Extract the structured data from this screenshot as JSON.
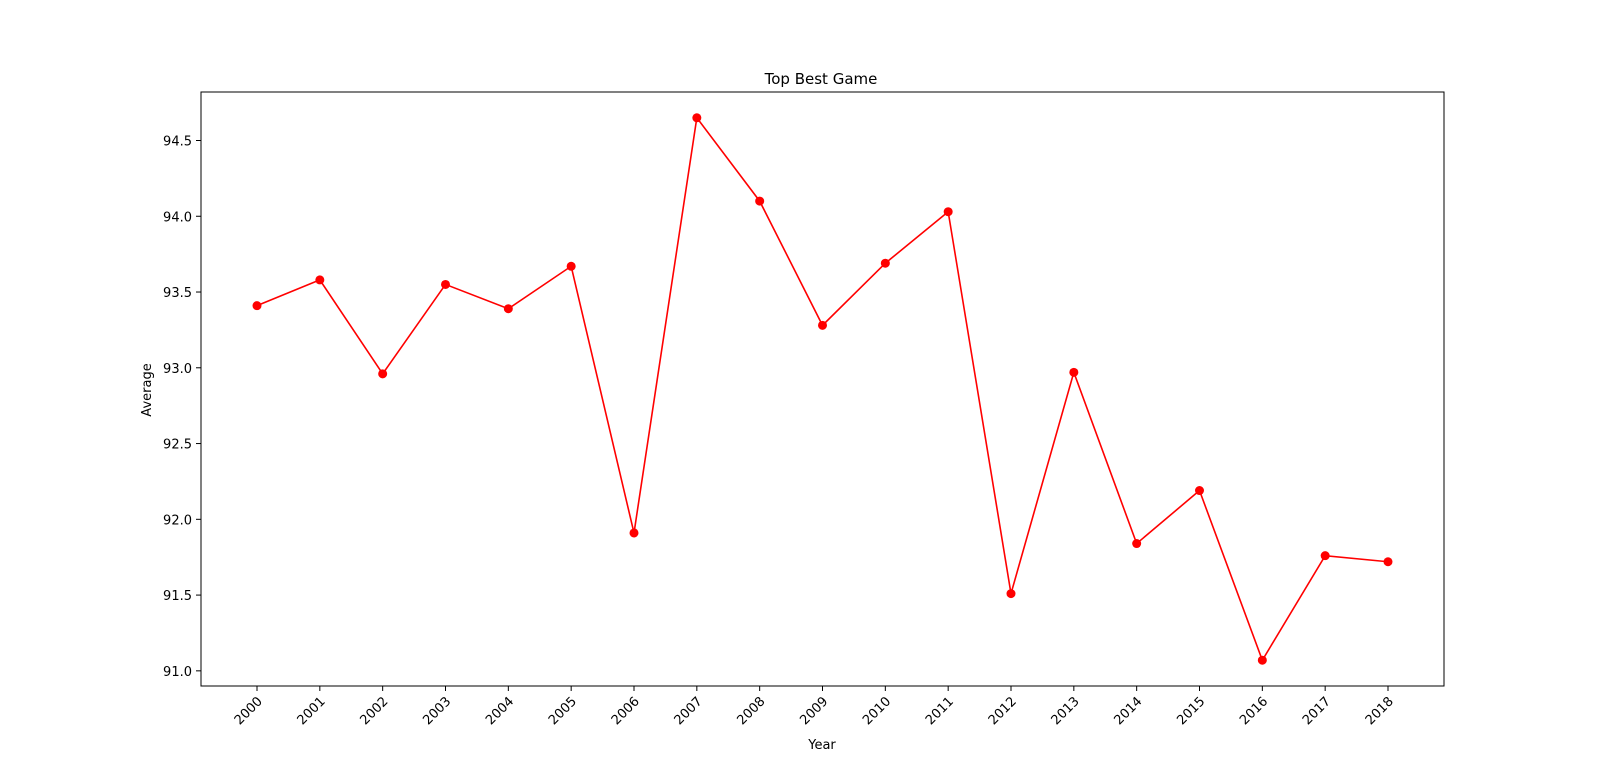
{
  "chart_data": {
    "type": "line",
    "title": "Top Best Game",
    "xlabel": "Year",
    "ylabel": "Average",
    "categories": [
      "2000",
      "2001",
      "2002",
      "2003",
      "2004",
      "2005",
      "2006",
      "2007",
      "2008",
      "2009",
      "2010",
      "2011",
      "2012",
      "2013",
      "2014",
      "2015",
      "2016",
      "2017",
      "2018"
    ],
    "series": [
      {
        "values": [
          93.41,
          93.58,
          92.96,
          93.55,
          93.39,
          93.67,
          91.91,
          94.65,
          94.1,
          93.28,
          93.69,
          94.03,
          91.51,
          92.97,
          91.84,
          92.19,
          91.07,
          91.76,
          91.72
        ],
        "color": "#ff0000",
        "marker": "circle"
      }
    ],
    "ylim": [
      90.9,
      94.82
    ],
    "yticks": [
      91.0,
      91.5,
      92.0,
      92.5,
      93.0,
      93.5,
      94.0,
      94.5
    ],
    "ytick_labels": [
      "91.0",
      "91.5",
      "92.0",
      "92.5",
      "93.0",
      "93.5",
      "94.0",
      "94.5"
    ],
    "grid": false,
    "legend": "none"
  }
}
